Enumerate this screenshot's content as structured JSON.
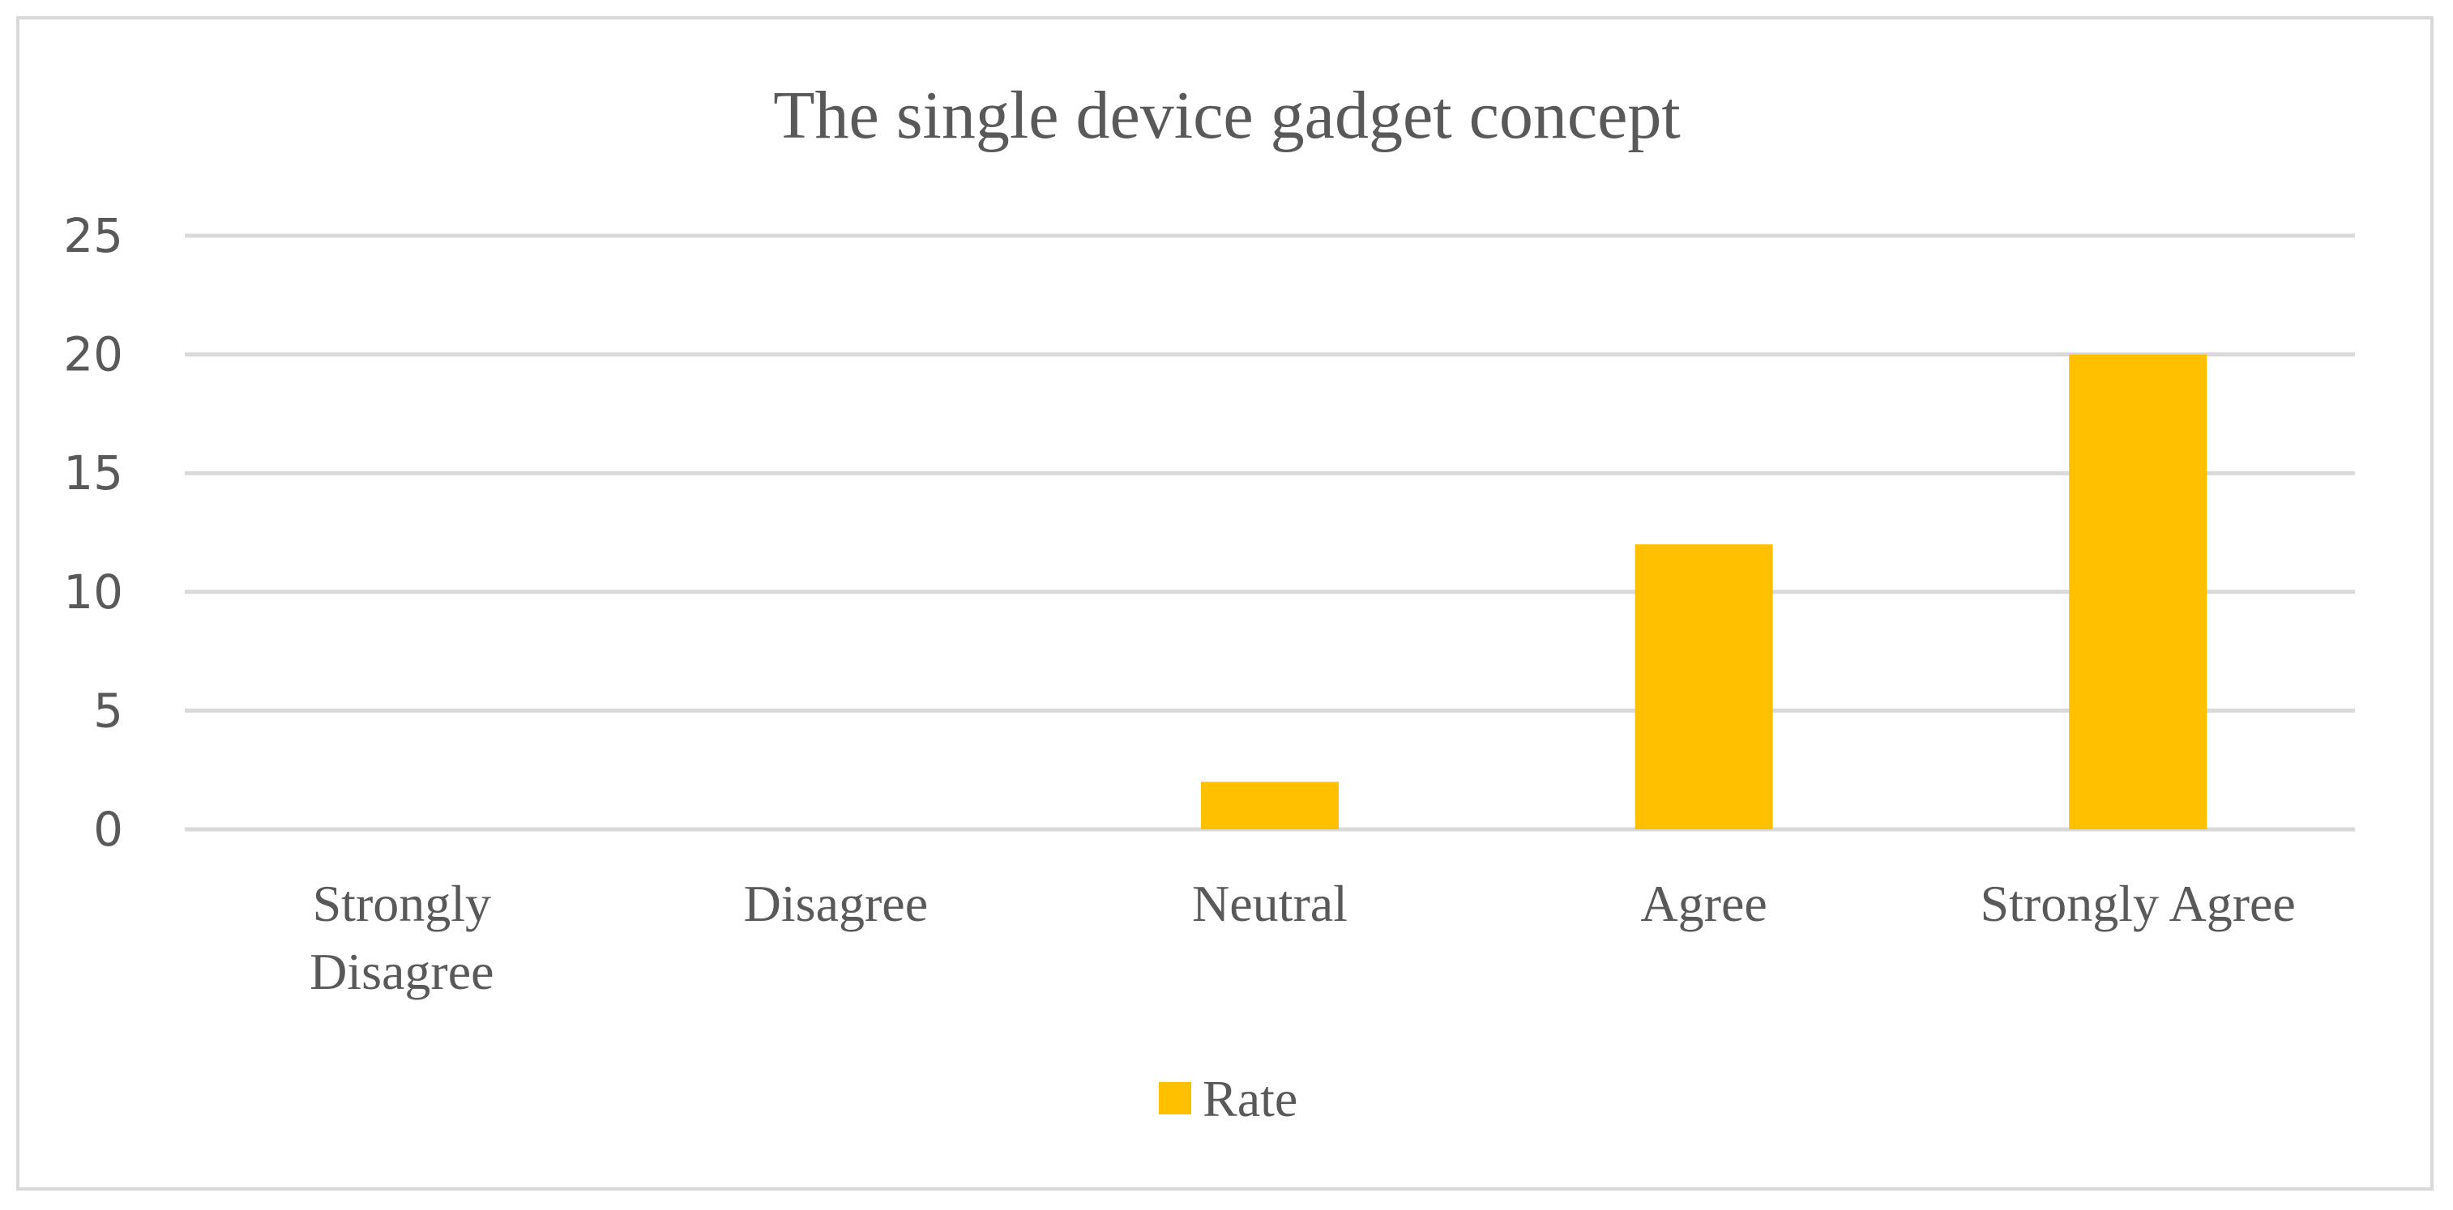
{
  "chart_data": {
    "type": "bar",
    "title": "The single device gadget concept",
    "categories": [
      [
        "Strongly",
        "Disagree"
      ],
      [
        "Disagree"
      ],
      [
        "Neutral"
      ],
      [
        "Agree"
      ],
      [
        "Strongly Agree"
      ]
    ],
    "series": [
      {
        "name": "Rate",
        "values": [
          0,
          0,
          2,
          12,
          20
        ],
        "color": "#FFC000"
      }
    ],
    "ylim": [
      0,
      25
    ],
    "yticks": [
      0,
      5,
      10,
      15,
      20,
      25
    ],
    "grid": true,
    "legend": "bottom"
  }
}
